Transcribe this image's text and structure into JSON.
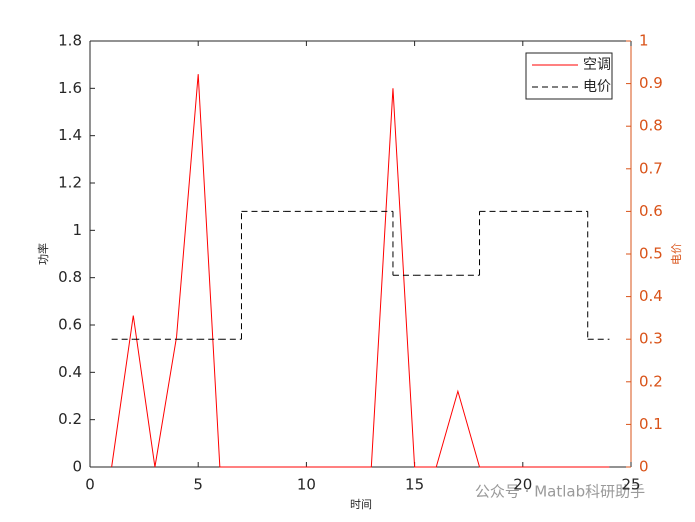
{
  "chart_data": {
    "type": "line",
    "xlabel": "时间",
    "ylabel": "功率",
    "y2label": "电价",
    "annotation": "公众号 · Matlab科研助手",
    "x": [
      1,
      2,
      3,
      4,
      5,
      6,
      7,
      8,
      9,
      10,
      11,
      12,
      13,
      14,
      15,
      16,
      17,
      18,
      19,
      20,
      21,
      22,
      23,
      24
    ],
    "series": [
      {
        "name": "空调",
        "color": "#ff0000",
        "style": "solid",
        "values": [
          0,
          0.64,
          0,
          0.55,
          1.66,
          0,
          0,
          0,
          0,
          0,
          0,
          0,
          0,
          1.6,
          0,
          0,
          0.32,
          0,
          0,
          0,
          0,
          0,
          0,
          0
        ]
      },
      {
        "name": "电价",
        "color": "#000000",
        "style": "dashed-stairs",
        "axis": "y2",
        "values": [
          0.3,
          0.3,
          0.3,
          0.3,
          0.3,
          0.3,
          0.6,
          0.6,
          0.6,
          0.6,
          0.6,
          0.6,
          0.6,
          0.45,
          0.45,
          0.45,
          0.45,
          0.6,
          0.6,
          0.6,
          0.6,
          0.6,
          0.3,
          0.3
        ]
      }
    ],
    "xlim": [
      0,
      25
    ],
    "xticks": [
      0,
      5,
      10,
      15,
      20,
      25
    ],
    "ylim": [
      0,
      1.8
    ],
    "yticks": [
      0,
      0.2,
      0.4,
      0.6,
      0.8,
      1,
      1.2,
      1.4,
      1.6,
      1.8
    ],
    "y2lim": [
      0,
      1
    ],
    "y2ticks": [
      0,
      0.1,
      0.2,
      0.3,
      0.4,
      0.5,
      0.6,
      0.7,
      0.8,
      0.9,
      1
    ],
    "y2color": "#d95319",
    "legend": "top-right"
  }
}
